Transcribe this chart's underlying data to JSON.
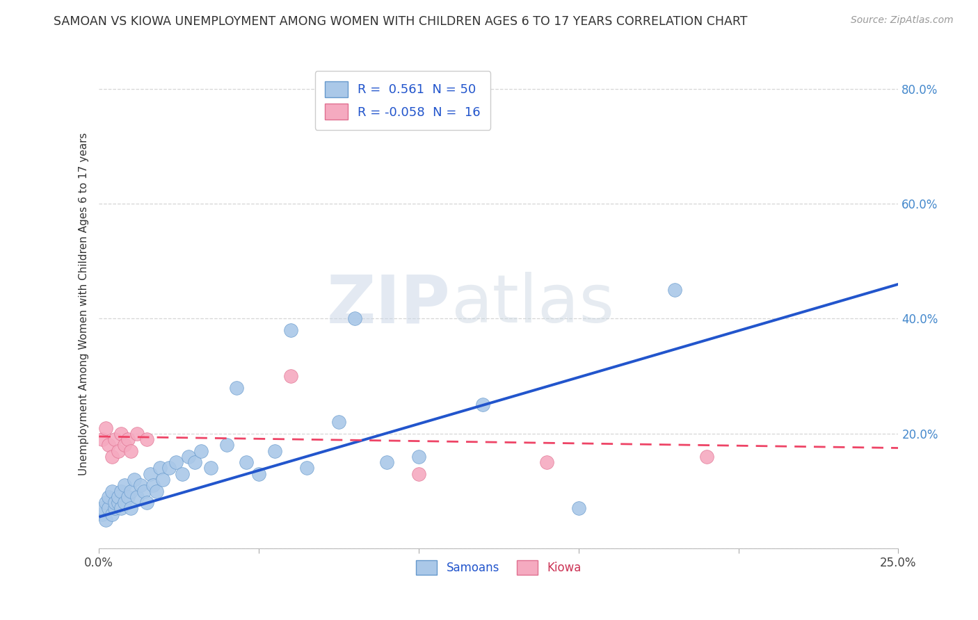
{
  "title": "SAMOAN VS KIOWA UNEMPLOYMENT AMONG WOMEN WITH CHILDREN AGES 6 TO 17 YEARS CORRELATION CHART",
  "source": "Source: ZipAtlas.com",
  "ylabel": "Unemployment Among Women with Children Ages 6 to 17 years",
  "xlim": [
    0.0,
    0.25
  ],
  "ylim": [
    0.0,
    0.85
  ],
  "xticks": [
    0.0,
    0.05,
    0.1,
    0.15,
    0.2,
    0.25
  ],
  "yticks": [
    0.0,
    0.2,
    0.4,
    0.6,
    0.8
  ],
  "grid_color": "#cccccc",
  "background_color": "#ffffff",
  "watermark_zip": "ZIP",
  "watermark_atlas": "atlas",
  "samoans_color": "#aac8e8",
  "kiowa_color": "#f5aac0",
  "samoans_edge_color": "#6699cc",
  "kiowa_edge_color": "#e07090",
  "samoans_line_color": "#2255cc",
  "kiowa_line_color": "#ee4466",
  "samoans_R": "0.561",
  "samoans_N": "50",
  "kiowa_R": "-0.058",
  "kiowa_N": "16",
  "samoans_x": [
    0.001,
    0.001,
    0.002,
    0.002,
    0.003,
    0.003,
    0.004,
    0.004,
    0.005,
    0.005,
    0.006,
    0.006,
    0.007,
    0.007,
    0.008,
    0.008,
    0.009,
    0.01,
    0.01,
    0.011,
    0.012,
    0.013,
    0.014,
    0.015,
    0.016,
    0.017,
    0.018,
    0.019,
    0.02,
    0.022,
    0.024,
    0.026,
    0.028,
    0.03,
    0.032,
    0.035,
    0.04,
    0.043,
    0.046,
    0.05,
    0.055,
    0.06,
    0.065,
    0.075,
    0.08,
    0.09,
    0.1,
    0.12,
    0.15,
    0.18
  ],
  "samoans_y": [
    0.06,
    0.07,
    0.05,
    0.08,
    0.07,
    0.09,
    0.06,
    0.1,
    0.07,
    0.08,
    0.08,
    0.09,
    0.07,
    0.1,
    0.08,
    0.11,
    0.09,
    0.07,
    0.1,
    0.12,
    0.09,
    0.11,
    0.1,
    0.08,
    0.13,
    0.11,
    0.1,
    0.14,
    0.12,
    0.14,
    0.15,
    0.13,
    0.16,
    0.15,
    0.17,
    0.14,
    0.18,
    0.28,
    0.15,
    0.13,
    0.17,
    0.38,
    0.14,
    0.22,
    0.4,
    0.15,
    0.16,
    0.25,
    0.07,
    0.45
  ],
  "kiowa_x": [
    0.001,
    0.002,
    0.003,
    0.004,
    0.005,
    0.006,
    0.007,
    0.008,
    0.009,
    0.01,
    0.012,
    0.015,
    0.06,
    0.1,
    0.14,
    0.19
  ],
  "kiowa_y": [
    0.19,
    0.21,
    0.18,
    0.16,
    0.19,
    0.17,
    0.2,
    0.18,
    0.19,
    0.17,
    0.2,
    0.19,
    0.3,
    0.13,
    0.15,
    0.16
  ],
  "samoans_line_x": [
    0.0,
    0.25
  ],
  "samoans_line_y": [
    0.055,
    0.46
  ],
  "kiowa_line_x": [
    0.0,
    0.25
  ],
  "kiowa_line_y": [
    0.195,
    0.175
  ],
  "marker_size": 200,
  "legend_fontsize": 13,
  "title_fontsize": 12.5
}
